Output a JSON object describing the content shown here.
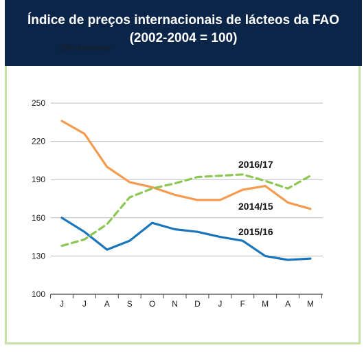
{
  "header": {
    "title_line1": "Índice de preços internacionais de lácteos da FAO",
    "title_line2": "(2002-2004 = 100)",
    "subtitle": "1000 toneladas"
  },
  "chart_data": {
    "type": "line",
    "categories": [
      "J",
      "J",
      "A",
      "S",
      "O",
      "N",
      "D",
      "J",
      "F",
      "M",
      "A",
      "M"
    ],
    "ylim": [
      100,
      250
    ],
    "yticks": [
      100,
      130,
      160,
      190,
      220,
      250
    ],
    "grid": true,
    "series": [
      {
        "name": "2014/15",
        "color": "#f39c4f",
        "dashed": false,
        "values": [
          236,
          226,
          200,
          188,
          184,
          178,
          174,
          174,
          182,
          185,
          172,
          167
        ]
      },
      {
        "name": "2015/16",
        "color": "#1b75bb",
        "dashed": false,
        "values": [
          160,
          149,
          135,
          142,
          156,
          151,
          149,
          145,
          142,
          130,
          127,
          128
        ]
      },
      {
        "name": "2016/17",
        "color": "#8cc653",
        "dashed": true,
        "values": [
          138,
          143,
          155,
          176,
          183,
          187,
          192,
          193,
          194,
          189,
          183,
          193
        ]
      }
    ],
    "labels": [
      {
        "series": "2016/17",
        "text": "2016/17"
      },
      {
        "series": "2014/15",
        "text": "2014/15"
      },
      {
        "series": "2015/16",
        "text": "2015/16"
      }
    ]
  }
}
